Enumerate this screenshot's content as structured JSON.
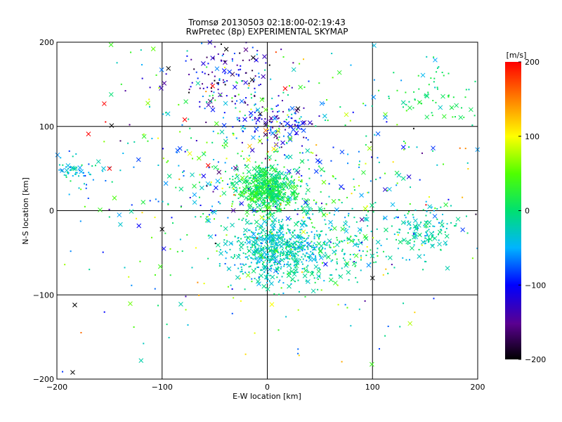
{
  "title_line1": "Tromsø 20130503 02:18:00-02:19:43",
  "title_line2": "RwPretec (8p) EXPERIMENTAL SKYMAP",
  "chart_data": {
    "type": "scatter",
    "title": "Tromsø 20130503 02:18:00-02:19:43",
    "subtitle": "RwPretec (8p) EXPERIMENTAL SKYMAP",
    "xlabel": "E-W location [km]",
    "ylabel": "N-S location [km]",
    "xlim": [
      -200,
      200
    ],
    "ylim": [
      -200,
      200
    ],
    "xticks": [
      -200,
      -100,
      0,
      100,
      200
    ],
    "yticks": [
      -200,
      -100,
      0,
      100,
      200
    ],
    "grid": true,
    "markers": [
      "dot",
      "x"
    ],
    "colorbar": {
      "label": "[m/s]",
      "range": [
        -200,
        200
      ],
      "ticks": [
        200,
        100,
        0,
        -100,
        -200
      ],
      "colormap": "rainbow"
    },
    "clusters": [
      {
        "x": 0,
        "y": 25,
        "n": 650,
        "sx": 14,
        "sy": 13,
        "v": 10,
        "sv": 18
      },
      {
        "x": 5,
        "y": -45,
        "n": 520,
        "sx": 22,
        "sy": 18,
        "v": -25,
        "sv": 18
      },
      {
        "x": 50,
        "y": -45,
        "n": 260,
        "sx": 28,
        "sy": 22,
        "v": -15,
        "sv": 25
      },
      {
        "x": 145,
        "y": -25,
        "n": 150,
        "sx": 22,
        "sy": 14,
        "v": -20,
        "sv": 20
      },
      {
        "x": -40,
        "y": 160,
        "n": 150,
        "sx": 28,
        "sy": 25,
        "v": -120,
        "sv": 50
      },
      {
        "x": 10,
        "y": 100,
        "n": 110,
        "sx": 18,
        "sy": 12,
        "v": -110,
        "sv": 40
      },
      {
        "x": -180,
        "y": 50,
        "n": 60,
        "sx": 12,
        "sy": 8,
        "v": -30,
        "sv": 25
      },
      {
        "x": 160,
        "y": 130,
        "n": 70,
        "sx": 25,
        "sy": 18,
        "v": 10,
        "sv": 20
      },
      {
        "x": 0,
        "y": 50,
        "n": 450,
        "sx": 75,
        "sy": 65,
        "v": -10,
        "sv": 70
      },
      {
        "x": 0,
        "y": -10,
        "n": 260,
        "sx": 110,
        "sy": 100,
        "v": 0,
        "sv": 80
      }
    ],
    "sample_points": [
      {
        "x": -185,
        "y": -192,
        "v": -200,
        "marker": "x"
      },
      {
        "x": -183,
        "y": -112,
        "v": -200,
        "marker": "x"
      },
      {
        "x": -100,
        "y": -22,
        "v": -200,
        "marker": "x"
      },
      {
        "x": -148,
        "y": 101,
        "v": -200,
        "marker": "x"
      },
      {
        "x": 100,
        "y": -80,
        "v": -200,
        "marker": "x"
      },
      {
        "x": -155,
        "y": 127,
        "v": 200,
        "marker": "x"
      },
      {
        "x": -170,
        "y": 91,
        "v": 200,
        "marker": "x"
      },
      {
        "x": -150,
        "y": 50,
        "v": 200,
        "marker": "x"
      },
      {
        "x": 17,
        "y": 145,
        "v": 200,
        "marker": "x"
      },
      {
        "x": -52,
        "y": 148,
        "v": 200,
        "marker": "x"
      },
      {
        "x": -118,
        "y": 10,
        "v": 20,
        "marker": "x"
      },
      {
        "x": -120,
        "y": -178,
        "v": -20,
        "marker": "x"
      },
      {
        "x": 112,
        "y": 25,
        "v": -120,
        "marker": "x"
      }
    ]
  }
}
